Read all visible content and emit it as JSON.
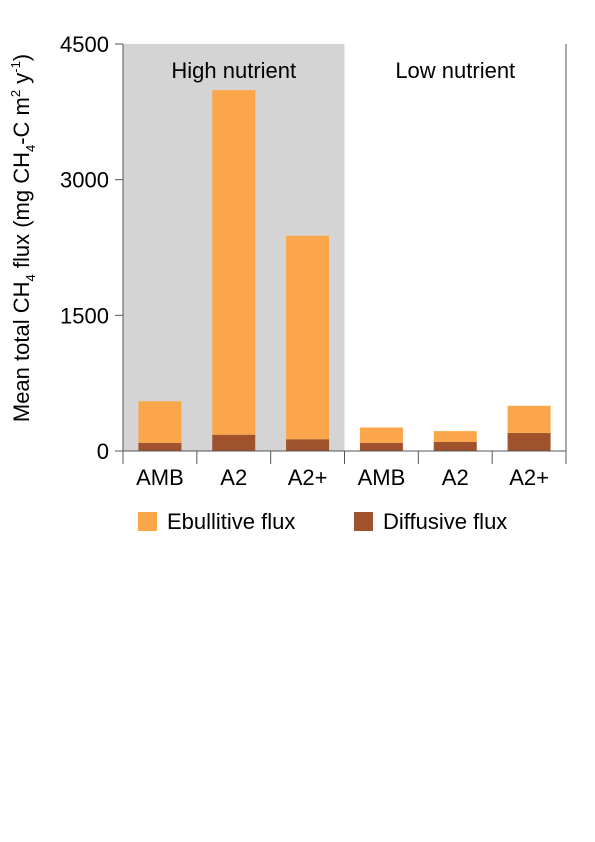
{
  "chart_data": {
    "type": "bar",
    "stacked": true,
    "ylabel": {
      "pre": "Mean total CH",
      "sub1": "4",
      "mid1": " flux (mg CH",
      "sub2": "4",
      "mid2": "-C m",
      "sup1": "2",
      "mid3": " y",
      "sup2": "-1",
      "post": ")"
    },
    "ylim": [
      0,
      4500
    ],
    "yticks": [
      0,
      1500,
      3000,
      4500
    ],
    "grid": false,
    "categories": [
      "AMB",
      "A2",
      "A2+",
      "AMB",
      "A2",
      "A2+"
    ],
    "groups": [
      {
        "label": "High nutrient",
        "start": 0,
        "end": 3,
        "shaded": true
      },
      {
        "label": "Low nutrient",
        "start": 3,
        "end": 6,
        "shaded": false
      }
    ],
    "series": [
      {
        "name": "Diffusive flux",
        "color": "#A0522D",
        "values": [
          90,
          180,
          130,
          90,
          100,
          200
        ]
      },
      {
        "name": "Ebullitive flux",
        "color": "#FBA64A",
        "values": [
          460,
          3810,
          2250,
          170,
          120,
          300
        ]
      }
    ],
    "legend": {
      "position": "bottom",
      "order": [
        1,
        0
      ]
    },
    "shade_color": "#D4D4D4"
  }
}
